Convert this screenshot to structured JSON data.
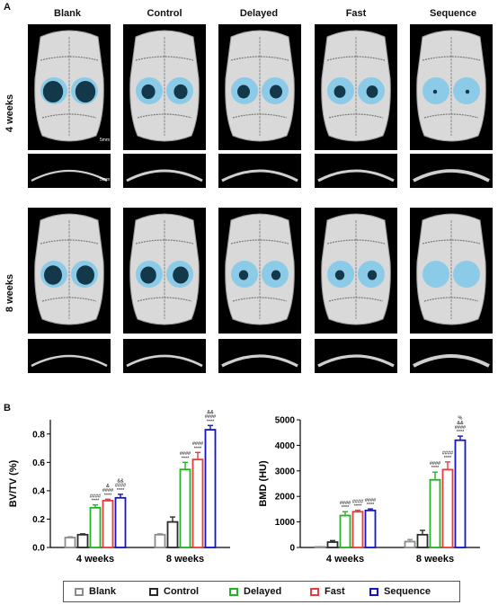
{
  "panel_a_label": "A",
  "panel_b_label": "B",
  "groups": [
    "Blank",
    "Control",
    "Delayed",
    "Fast",
    "Sequence"
  ],
  "rows": [
    "4 weeks",
    "8 weeks"
  ],
  "scale_bar_label": "5mm",
  "colors": {
    "Blank": "#8c8c8c",
    "Control": "#2b2b2b",
    "Delayed": "#22b422",
    "Fast": "#e83b3b",
    "Sequence": "#1414c8",
    "defect_overlay": "#7ec8ea"
  },
  "chart_data": [
    {
      "type": "bar",
      "ylabel": "BV/TV (%)",
      "ylim": [
        0,
        0.9
      ],
      "yticks": [
        "0.0",
        "0.2",
        "0.4",
        "0.6",
        "0.8"
      ],
      "categories": [
        "4 weeks",
        "8 weeks"
      ],
      "series": [
        {
          "name": "Blank",
          "values": [
            0.07,
            0.09
          ],
          "errors": [
            0.005,
            0.006
          ]
        },
        {
          "name": "Control",
          "values": [
            0.09,
            0.18
          ],
          "errors": [
            0.006,
            0.035
          ]
        },
        {
          "name": "Delayed",
          "values": [
            0.28,
            0.55
          ],
          "errors": [
            0.02,
            0.05
          ]
        },
        {
          "name": "Fast",
          "values": [
            0.33,
            0.62
          ],
          "errors": [
            0.01,
            0.05
          ]
        },
        {
          "name": "Sequence",
          "values": [
            0.35,
            0.83
          ],
          "errors": [
            0.025,
            0.03
          ]
        }
      ],
      "annotations": [
        {
          "category": 0,
          "series": 2,
          "text": [
            "####",
            "****"
          ]
        },
        {
          "category": 0,
          "series": 3,
          "text": [
            "&",
            "####",
            "****"
          ]
        },
        {
          "category": 0,
          "series": 4,
          "text": [
            "&&",
            "####",
            "****"
          ]
        },
        {
          "category": 1,
          "series": 2,
          "text": [
            "####",
            "****"
          ]
        },
        {
          "category": 1,
          "series": 3,
          "text": [
            "####",
            "****"
          ]
        },
        {
          "category": 1,
          "series": 4,
          "text": [
            "%%",
            "&&",
            "####",
            "****"
          ]
        }
      ]
    },
    {
      "type": "bar",
      "ylabel": "BMD (HU)",
      "ylim": [
        0,
        5000
      ],
      "yticks": [
        "0",
        "1000",
        "2000",
        "3000",
        "4000",
        "5000"
      ],
      "categories": [
        "4 weeks",
        "8 weeks"
      ],
      "series": [
        {
          "name": "Blank",
          "values": [
            20,
            230
          ],
          "errors": [
            10,
            80
          ]
        },
        {
          "name": "Control",
          "values": [
            210,
            500
          ],
          "errors": [
            60,
            170
          ]
        },
        {
          "name": "Delayed",
          "values": [
            1250,
            2650
          ],
          "errors": [
            150,
            300
          ]
        },
        {
          "name": "Fast",
          "values": [
            1400,
            3050
          ],
          "errors": [
            60,
            300
          ]
        },
        {
          "name": "Sequence",
          "values": [
            1450,
            4200
          ],
          "errors": [
            60,
            160
          ]
        }
      ],
      "annotations": [
        {
          "category": 0,
          "series": 2,
          "text": [
            "####",
            "****"
          ]
        },
        {
          "category": 0,
          "series": 3,
          "text": [
            "####",
            "****"
          ]
        },
        {
          "category": 0,
          "series": 4,
          "text": [
            "####",
            "****"
          ]
        },
        {
          "category": 1,
          "series": 2,
          "text": [
            "####",
            "****"
          ]
        },
        {
          "category": 1,
          "series": 3,
          "text": [
            "####",
            "****"
          ]
        },
        {
          "category": 1,
          "series": 4,
          "text": [
            "%",
            "&&",
            "####",
            "****"
          ]
        }
      ]
    }
  ]
}
